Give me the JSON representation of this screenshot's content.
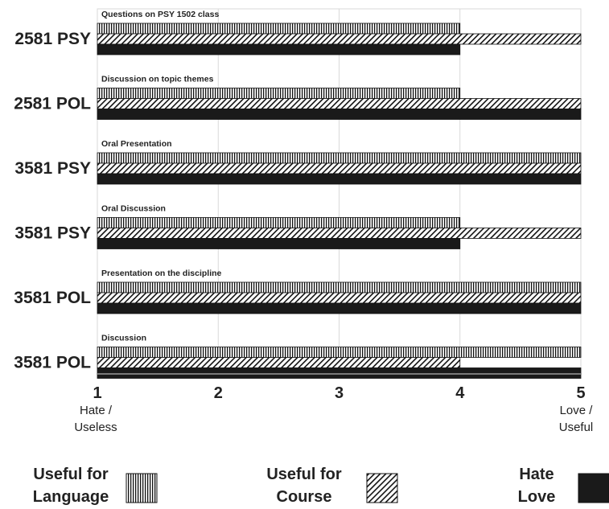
{
  "chart_data": {
    "type": "bar",
    "orientation": "horizontal",
    "categories": [
      "2581 PSY",
      "2581 POL",
      "3581 PSY",
      "3581 PSY",
      "3581 POL",
      "3581 POL"
    ],
    "group_titles": [
      "Questions on PSY 1502  class",
      "Discussion on topic themes",
      "Oral Presentation",
      "Oral Discussion",
      "Presentation on the discipline",
      "Discussion"
    ],
    "series": [
      {
        "name": "Useful for Language",
        "pattern": "vertical-lines",
        "values": [
          4,
          4,
          5,
          4,
          5,
          5
        ]
      },
      {
        "name": "Useful for Course",
        "pattern": "diagonal-hatch",
        "values": [
          5,
          5,
          5,
          5,
          5,
          4
        ]
      },
      {
        "name": "Hate Love",
        "pattern": "solid",
        "color": "#1a1a1a",
        "values": [
          4,
          5,
          5,
          4,
          5,
          5
        ]
      }
    ],
    "xlim": [
      1,
      5
    ],
    "xticks": [
      "1",
      "2",
      "3",
      "4",
      "5"
    ],
    "x_end_labels": {
      "left": [
        "Hate /",
        "Useless"
      ],
      "right": [
        "Love /",
        "Useful"
      ]
    },
    "grid": true,
    "legend_position": "bottom",
    "legend": [
      {
        "lines": [
          "Useful for",
          "Language"
        ],
        "pattern": "vertical-lines"
      },
      {
        "lines": [
          "Useful for",
          "Course"
        ],
        "pattern": "diagonal-hatch"
      },
      {
        "lines": [
          "Hate",
          "Love"
        ],
        "pattern": "solid"
      }
    ]
  }
}
